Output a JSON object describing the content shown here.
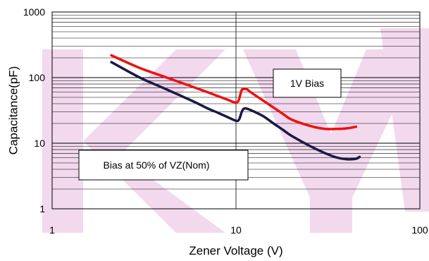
{
  "chart_data": {
    "type": "line",
    "title": "",
    "xlabel": "Zener Voltage (V)",
    "ylabel": "Capacitance(pF)",
    "x_scale": "log",
    "y_scale": "log",
    "xlim": [
      1,
      100
    ],
    "ylim": [
      1,
      1000
    ],
    "x_ticks": [
      "1",
      "10",
      "100"
    ],
    "y_ticks": [
      "1",
      "10",
      "100",
      "1000"
    ],
    "grid": true,
    "series": [
      {
        "name": "1V Bias",
        "color": "#ee1111",
        "x": [
          2.1,
          3,
          4,
          5,
          6,
          7,
          8,
          9,
          9.8,
          10.3,
          10.7,
          11,
          11.5,
          12,
          14,
          16,
          18,
          20,
          25,
          30,
          35,
          40,
          45
        ],
        "y": [
          218,
          140,
          105,
          84,
          70,
          60,
          52,
          46,
          42,
          44,
          63,
          67,
          66,
          60,
          45,
          35,
          28,
          23,
          18.5,
          16.6,
          16.5,
          16.8,
          17.8
        ]
      },
      {
        "name": "Bias at 50% of VZ(Nom)",
        "color": "#1a1a44",
        "x": [
          2.1,
          3,
          4,
          5,
          6,
          7,
          8,
          9,
          10,
          10.4,
          10.8,
          11.2,
          12,
          14,
          16,
          18,
          20,
          25,
          30,
          35,
          40,
          45,
          47
        ],
        "y": [
          172,
          100,
          70,
          53,
          42,
          34,
          29,
          25,
          22,
          23,
          31,
          34,
          32,
          26,
          20,
          16,
          13,
          9.2,
          7.2,
          6.1,
          5.7,
          5.8,
          6.2
        ]
      }
    ],
    "annotations": [
      "1V Bias",
      "Bias at 50% of VZ(Nom)"
    ]
  }
}
